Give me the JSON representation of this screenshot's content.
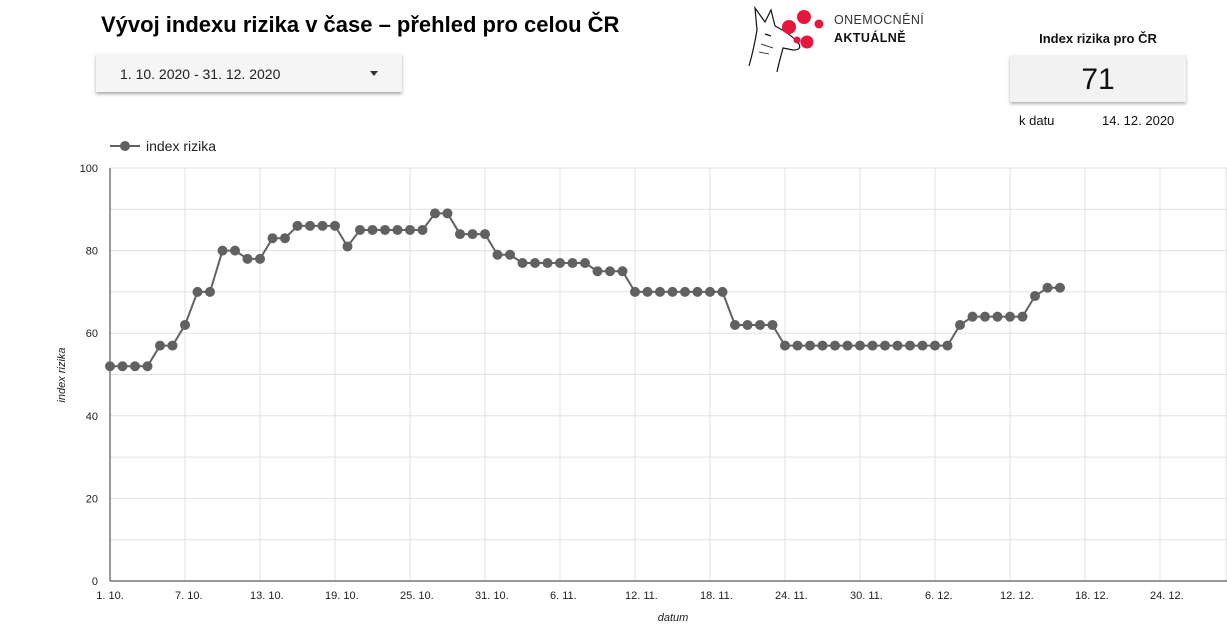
{
  "header": {
    "title": "Vývoj indexu rizika v čase – přehled pro celou ČR",
    "date_range": "1. 10. 2020 - 31. 12. 2020"
  },
  "logo": {
    "line1": "ONEMOCNĚNÍ",
    "line2": "AKTUÁLNĚ",
    "dot_color": "#e5173f"
  },
  "kpi": {
    "title": "Index rizika pro ČR",
    "value": "71",
    "date_label": "k datu",
    "date_value": "14. 12. 2020"
  },
  "chart_data": {
    "type": "line",
    "xlabel": "datum",
    "ylabel": "index rizika",
    "ylim": [
      0,
      100
    ],
    "y_ticks": [
      0,
      20,
      40,
      60,
      80,
      100
    ],
    "x_ticks": [
      "1. 10.",
      "7. 10.",
      "13. 10.",
      "19. 10.",
      "25. 10.",
      "31. 10.",
      "6. 11.",
      "12. 11.",
      "18. 11.",
      "24. 11.",
      "30. 11.",
      "6. 12.",
      "12. 12.",
      "18. 12.",
      "24. 12."
    ],
    "x_start": "1. 10. 2020",
    "x_end": "31. 12. 2020",
    "grid": true,
    "legend_position": "top-left",
    "series": [
      {
        "name": "index rizika",
        "color": "#616161",
        "values": [
          52,
          52,
          52,
          52,
          57,
          57,
          62,
          70,
          70,
          80,
          80,
          78,
          78,
          83,
          83,
          86,
          86,
          86,
          86,
          81,
          85,
          85,
          85,
          85,
          85,
          85,
          89,
          89,
          84,
          84,
          84,
          79,
          79,
          77,
          77,
          77,
          77,
          77,
          77,
          75,
          75,
          75,
          70,
          70,
          70,
          70,
          70,
          70,
          70,
          70,
          62,
          62,
          62,
          62,
          57,
          57,
          57,
          57,
          57,
          57,
          57,
          57,
          57,
          57,
          57,
          57,
          57,
          57,
          62,
          64,
          64,
          64,
          64,
          64,
          69,
          71,
          71
        ]
      }
    ]
  }
}
